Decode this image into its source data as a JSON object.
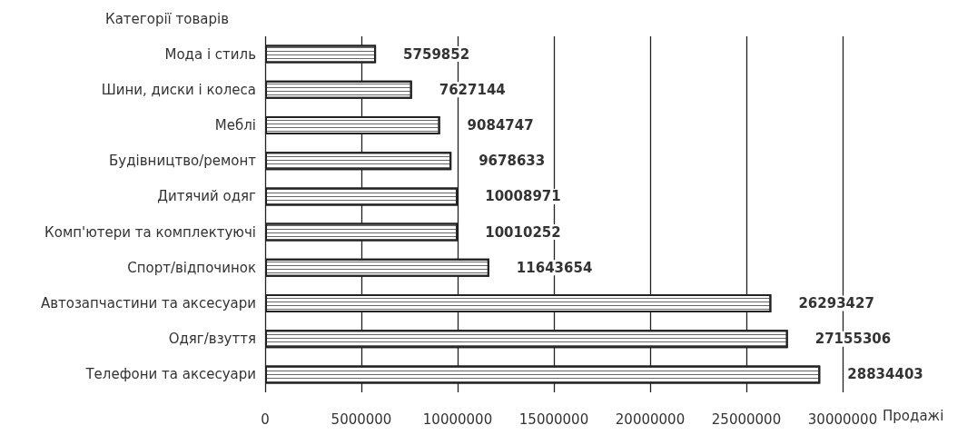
{
  "chart_data": {
    "type": "bar",
    "orientation": "horizontal",
    "xlabel": "Продажі",
    "ylabel": "Категорії товарів",
    "categories": [
      "Мода і стиль",
      "Шини, диски і колеса",
      "Меблі",
      "Будівництво/ремонт",
      "Дитячий одяг",
      "Комп'ютери та комплектуючі",
      "Спорт/відпочинок",
      "Автозапчастини та аксесуари",
      "Одяг/взуття",
      "Телефони та аксесуари"
    ],
    "values": [
      5759852,
      7627144,
      9084747,
      9678633,
      10008971,
      10010252,
      11643654,
      26293427,
      27155306,
      28834403
    ],
    "color": "#ffffff",
    "xlim": [
      0,
      30000000
    ],
    "xticks": [
      0,
      5000000,
      10000000,
      15000000,
      20000000,
      25000000,
      30000000
    ],
    "grid": "x",
    "data_labels": true
  }
}
